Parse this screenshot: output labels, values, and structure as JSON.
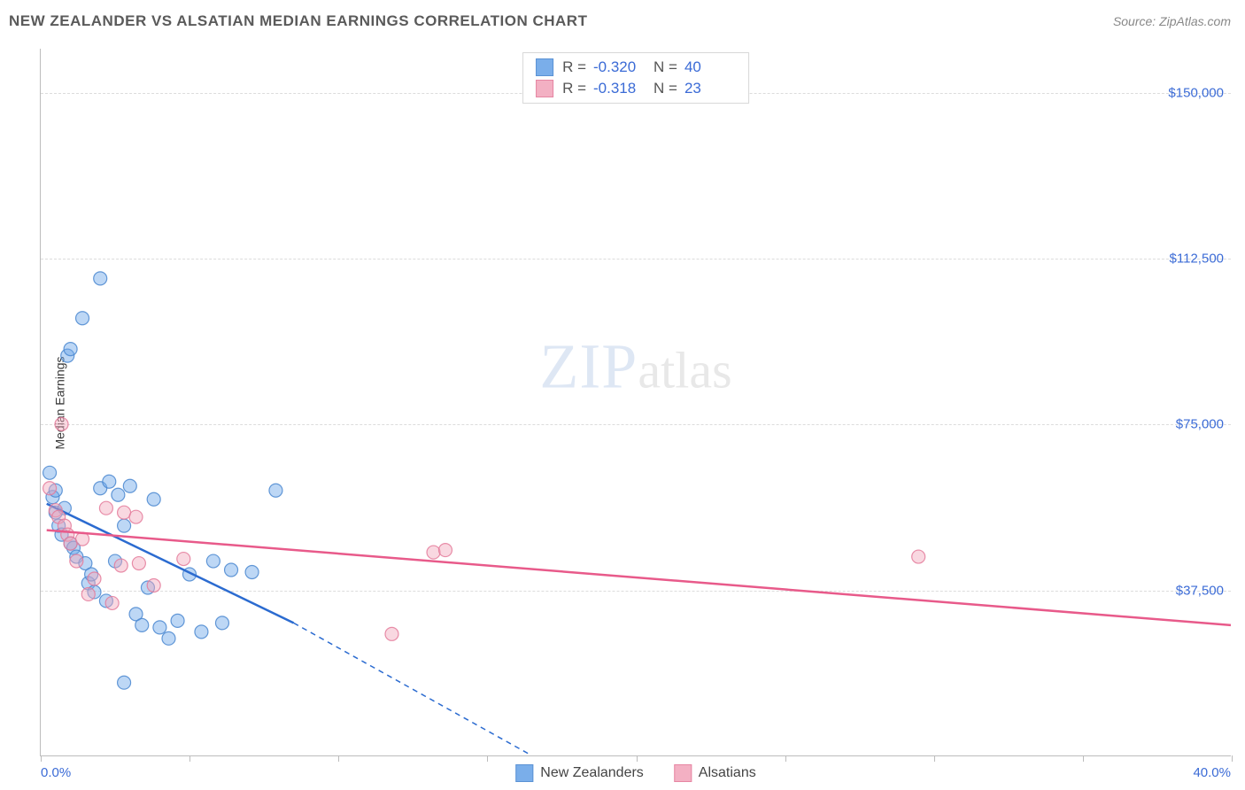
{
  "title": "NEW ZEALANDER VS ALSATIAN MEDIAN EARNINGS CORRELATION CHART",
  "source_label": "Source: ZipAtlas.com",
  "watermark": {
    "part1": "ZIP",
    "part2": "atlas"
  },
  "y_axis_title": "Median Earnings",
  "chart": {
    "type": "scatter",
    "background_color": "#ffffff",
    "grid_color": "#dcdcdc",
    "axis_color": "#bcbcbc",
    "xlim": [
      0,
      40
    ],
    "ylim": [
      0,
      160000
    ],
    "x_ticks": [
      0,
      5,
      10,
      15,
      20,
      25,
      30,
      35,
      40
    ],
    "x_tick_labels": {
      "0": "0.0%",
      "40": "40.0%"
    },
    "y_gridlines": [
      37500,
      75000,
      112500,
      150000
    ],
    "y_tick_labels": [
      "$37,500",
      "$75,000",
      "$112,500",
      "$150,000"
    ],
    "label_color": "#3b6bd6",
    "label_fontsize": 15,
    "marker_radius": 7.5,
    "marker_opacity": 0.45,
    "marker_stroke_opacity": 0.85,
    "line_width": 2.5,
    "series": [
      {
        "name": "New Zealanders",
        "color": "#6ca6e8",
        "stroke": "#4a87d0",
        "line_color": "#2b6bd0",
        "R": "-0.320",
        "N": "40",
        "trend": {
          "solid": {
            "x1": 0.2,
            "y1": 57000,
            "x2": 8.5,
            "y2": 30000
          },
          "dashed": {
            "x1": 8.5,
            "y1": 30000,
            "x2": 16.5,
            "y2": 0
          }
        },
        "points": [
          {
            "x": 0.3,
            "y": 64000
          },
          {
            "x": 0.4,
            "y": 58500
          },
          {
            "x": 0.5,
            "y": 55000
          },
          {
            "x": 0.5,
            "y": 60000
          },
          {
            "x": 0.6,
            "y": 52000
          },
          {
            "x": 0.7,
            "y": 50000
          },
          {
            "x": 0.8,
            "y": 56000
          },
          {
            "x": 0.9,
            "y": 90500
          },
          {
            "x": 1.0,
            "y": 92000
          },
          {
            "x": 1.0,
            "y": 48000
          },
          {
            "x": 1.1,
            "y": 47000
          },
          {
            "x": 1.2,
            "y": 45000
          },
          {
            "x": 1.4,
            "y": 99000
          },
          {
            "x": 1.5,
            "y": 43500
          },
          {
            "x": 1.6,
            "y": 39000
          },
          {
            "x": 1.7,
            "y": 41000
          },
          {
            "x": 1.8,
            "y": 37000
          },
          {
            "x": 2.0,
            "y": 108000
          },
          {
            "x": 2.0,
            "y": 60500
          },
          {
            "x": 2.2,
            "y": 35000
          },
          {
            "x": 2.3,
            "y": 62000
          },
          {
            "x": 2.5,
            "y": 44000
          },
          {
            "x": 2.6,
            "y": 59000
          },
          {
            "x": 2.8,
            "y": 52000
          },
          {
            "x": 2.8,
            "y": 16500
          },
          {
            "x": 3.0,
            "y": 61000
          },
          {
            "x": 3.2,
            "y": 32000
          },
          {
            "x": 3.4,
            "y": 29500
          },
          {
            "x": 3.6,
            "y": 38000
          },
          {
            "x": 3.8,
            "y": 58000
          },
          {
            "x": 4.0,
            "y": 29000
          },
          {
            "x": 4.3,
            "y": 26500
          },
          {
            "x": 4.6,
            "y": 30500
          },
          {
            "x": 5.0,
            "y": 41000
          },
          {
            "x": 5.4,
            "y": 28000
          },
          {
            "x": 5.8,
            "y": 44000
          },
          {
            "x": 6.1,
            "y": 30000
          },
          {
            "x": 6.4,
            "y": 42000
          },
          {
            "x": 7.1,
            "y": 41500
          },
          {
            "x": 7.9,
            "y": 60000
          }
        ]
      },
      {
        "name": "Alsatians",
        "color": "#f2a8bd",
        "stroke": "#e47a9a",
        "line_color": "#e85a8a",
        "R": "-0.318",
        "N": "23",
        "trend": {
          "solid": {
            "x1": 0.2,
            "y1": 51000,
            "x2": 40,
            "y2": 29500
          }
        },
        "points": [
          {
            "x": 0.3,
            "y": 60500
          },
          {
            "x": 0.5,
            "y": 55500
          },
          {
            "x": 0.6,
            "y": 54000
          },
          {
            "x": 0.7,
            "y": 75000
          },
          {
            "x": 0.8,
            "y": 52000
          },
          {
            "x": 0.9,
            "y": 50000
          },
          {
            "x": 1.0,
            "y": 48000
          },
          {
            "x": 1.2,
            "y": 44000
          },
          {
            "x": 1.4,
            "y": 49000
          },
          {
            "x": 1.6,
            "y": 36500
          },
          {
            "x": 1.8,
            "y": 40000
          },
          {
            "x": 2.2,
            "y": 56000
          },
          {
            "x": 2.4,
            "y": 34500
          },
          {
            "x": 2.7,
            "y": 43000
          },
          {
            "x": 2.8,
            "y": 55000
          },
          {
            "x": 3.2,
            "y": 54000
          },
          {
            "x": 3.3,
            "y": 43500
          },
          {
            "x": 3.8,
            "y": 38500
          },
          {
            "x": 4.8,
            "y": 44500
          },
          {
            "x": 11.8,
            "y": 27500
          },
          {
            "x": 13.2,
            "y": 46000
          },
          {
            "x": 13.6,
            "y": 46500
          },
          {
            "x": 29.5,
            "y": 45000
          }
        ]
      }
    ]
  },
  "legend_top_labels": {
    "R": "R =",
    "N": "N ="
  },
  "legend_bottom": [
    "New Zealanders",
    "Alsatians"
  ]
}
